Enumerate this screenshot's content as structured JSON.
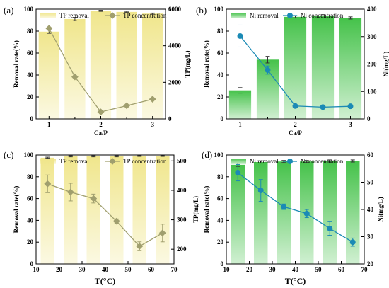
{
  "chart_data": [
    {
      "panel": "(a)",
      "type": "bar+line",
      "x_label": "Ca/P",
      "y_label": "Removal rate(%)",
      "y2_label": "TP(mg/L)",
      "x_ticks": [
        "1",
        "2",
        "3"
      ],
      "y_ticks": [
        "0",
        "20",
        "40",
        "60",
        "80",
        "100"
      ],
      "y2_ticks": [
        "0",
        "2000",
        "4000",
        "6000"
      ],
      "ylim": [
        0,
        100
      ],
      "y2lim": [
        0,
        6000
      ],
      "x": [
        1.0,
        1.5,
        2.0,
        2.5,
        3.0
      ],
      "bar_series": {
        "name": "TP removal",
        "values": [
          79.5,
          91,
          98.5,
          97.5,
          96
        ],
        "errors": [
          1.5,
          1.5,
          0.5,
          0.5,
          0.5
        ]
      },
      "line_series": {
        "name": "TP concentration",
        "values": [
          4950,
          2300,
          380,
          720,
          1080
        ]
      },
      "bar_color": "#f0e68c",
      "line_color": "#a09f6e",
      "marker": "diamond"
    },
    {
      "panel": "(b)",
      "type": "bar+line",
      "x_label": "Ca/P",
      "y_label": "Removal rate(%)",
      "y2_label": "Ni(mg/L)",
      "x_ticks": [
        "1",
        "2",
        "3"
      ],
      "y_ticks": [
        "0",
        "20",
        "40",
        "60",
        "80",
        "100"
      ],
      "y2_ticks": [
        "0",
        "100",
        "200",
        "300",
        "400"
      ],
      "ylim": [
        0,
        100
      ],
      "y2lim": [
        0,
        400
      ],
      "x": [
        1.0,
        1.5,
        2.0,
        2.5,
        3.0
      ],
      "bar_series": {
        "name": "Ni removal",
        "values": [
          26,
          54,
          93,
          93.5,
          92
        ],
        "errors": [
          2.5,
          3,
          1,
          1.5,
          1
        ]
      },
      "line_series": {
        "name": "Ni concentration",
        "values": [
          302,
          178,
          47,
          43,
          46
        ],
        "errors": [
          40,
          15,
          0,
          0,
          0
        ]
      },
      "bar_color": "#45c24a",
      "line_color": "#1b8ab5",
      "marker": "circle"
    },
    {
      "panel": "(c)",
      "type": "bar+line",
      "x_label": "T(°C)",
      "y_label": "Removal rate(%)",
      "y2_label": "TP(mg/L)",
      "x_ticks": [
        "10",
        "20",
        "30",
        "40",
        "50",
        "60",
        "70"
      ],
      "y_ticks": [
        "0",
        "20",
        "40",
        "60",
        "80",
        "100"
      ],
      "y2_ticks": [
        "200",
        "300",
        "400",
        "500"
      ],
      "xlim": [
        10,
        70
      ],
      "ylim": [
        0,
        100
      ],
      "y2lim": [
        150,
        520
      ],
      "x": [
        15,
        25,
        35,
        45,
        55,
        65
      ],
      "bar_series": {
        "name": "TP removal",
        "values": [
          97.5,
          98.8,
          98.8,
          98.8,
          99.2,
          99.2
        ],
        "errors": [
          0.5,
          0.5,
          0.5,
          0.5,
          0.5,
          0.5
        ]
      },
      "line_series": {
        "name": "TP concentration",
        "values": [
          422,
          394,
          372,
          295,
          210,
          255
        ],
        "errors": [
          30,
          30,
          15,
          8,
          15,
          30
        ]
      },
      "bar_color": "#f0e68c",
      "line_color": "#a09f6e",
      "marker": "diamond"
    },
    {
      "panel": "(d)",
      "type": "bar+line",
      "x_label": "T(°C)",
      "y_label": "Removal rate(%)",
      "y2_label": "Ni(mg/L)",
      "x_ticks": [
        "10",
        "20",
        "30",
        "40",
        "50",
        "60",
        "70"
      ],
      "y_ticks": [
        "0",
        "20",
        "40",
        "60",
        "80",
        "100"
      ],
      "y2_ticks": [
        "20",
        "30",
        "40",
        "50",
        "60"
      ],
      "xlim": [
        10,
        70
      ],
      "ylim": [
        0,
        100
      ],
      "y2lim": [
        20,
        60
      ],
      "x": [
        15,
        25,
        35,
        45,
        55,
        65
      ],
      "bar_series": {
        "name": "Ni removal",
        "values": [
          91,
          93.5,
          94,
          94,
          94.5,
          94.5
        ],
        "errors": [
          1.5,
          1,
          1,
          1,
          1,
          1
        ]
      },
      "line_series": {
        "name": "Ni concentration",
        "values": [
          53.5,
          47,
          41,
          38.5,
          33,
          28
        ],
        "errors": [
          3,
          4,
          1,
          1.5,
          2.5,
          1.5
        ]
      },
      "bar_color": "#45c24a",
      "line_color": "#1b8ab5",
      "marker": "circle"
    }
  ]
}
